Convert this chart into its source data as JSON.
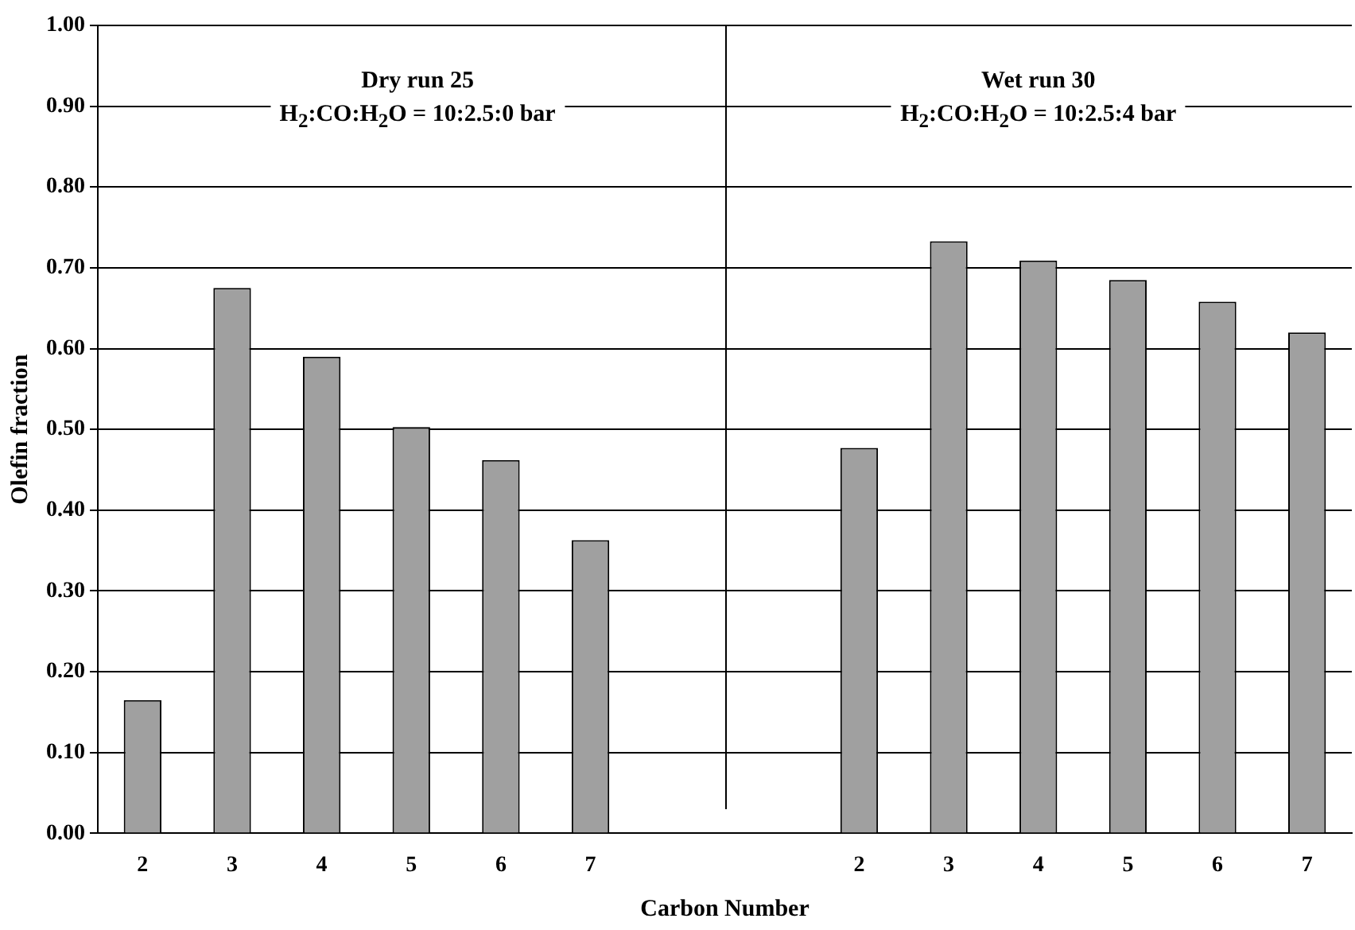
{
  "chart_data": {
    "type": "bar",
    "xlabel": "Carbon Number",
    "ylabel": "Olefin fraction",
    "categories": [
      "2",
      "3",
      "4",
      "5",
      "6",
      "7",
      null,
      null,
      "2",
      "3",
      "4",
      "5",
      "6",
      "7"
    ],
    "values": [
      0.165,
      0.675,
      0.59,
      0.503,
      0.462,
      0.363,
      null,
      null,
      0.477,
      0.733,
      0.709,
      0.685,
      0.658,
      0.62
    ],
    "color": "#a0a0a0",
    "ylim": [
      0,
      1
    ],
    "yticks": [
      {
        "value": 0,
        "label": "0.00"
      },
      {
        "value": 0.1,
        "label": "0.10"
      },
      {
        "value": 0.2,
        "label": "0.20"
      },
      {
        "value": 0.3,
        "label": "0.30"
      },
      {
        "value": 0.4,
        "label": "0.40"
      },
      {
        "value": 0.5,
        "label": "0.50"
      },
      {
        "value": 0.6,
        "label": "0.60"
      },
      {
        "value": 0.7,
        "label": "0.70"
      },
      {
        "value": 0.8,
        "label": "0.80"
      },
      {
        "value": 0.9,
        "label": "0.90"
      },
      {
        "value": 1,
        "label": "1.00"
      }
    ],
    "grid": "y",
    "legend": false,
    "annotations": [
      "Dry run 25",
      "H$_{2}$:CO:H$_{2}$O = 10:2.5:0 bar",
      "Wet run 30",
      "H$_{2}$:CO:H$_{2}$O = 10:2.5:4 bar"
    ]
  }
}
